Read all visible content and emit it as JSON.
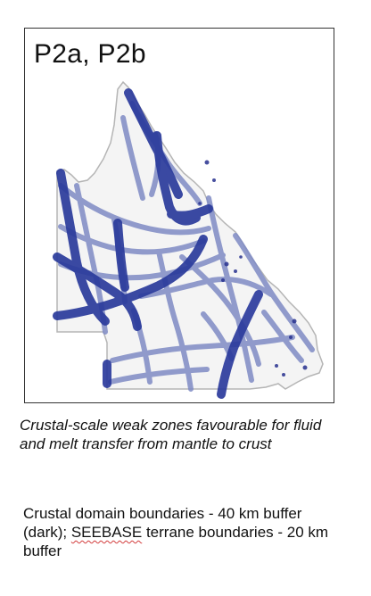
{
  "map": {
    "panel_label": "P2a, P2b",
    "colors": {
      "dark": "#2b3b9c",
      "light": "#7f8bc5",
      "outline": "#b5b5b5",
      "fragments": "#27318f"
    }
  },
  "caption": {
    "text": "Crustal-scale weak zones favourable for fluid and melt transfer from mantle to crust"
  },
  "legend": {
    "part1": "Crustal domain boundaries - 40 km buffer (dark); ",
    "seebase": "SEEBASE",
    "part2": " terrane boundaries - 20 km buffer"
  }
}
